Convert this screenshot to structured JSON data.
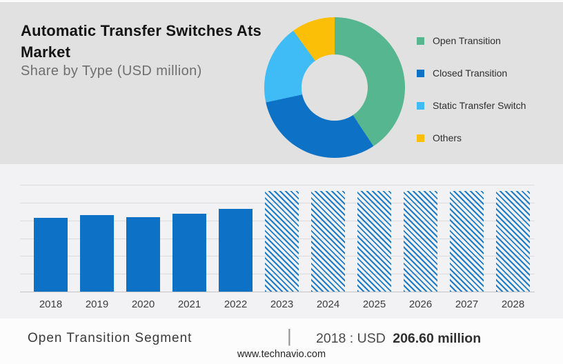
{
  "header": {
    "title": "Automatic Transfer Switches Ats Market",
    "subtitle": "Share by Type (USD million)"
  },
  "colors": {
    "header_bg": "#e1e1e2",
    "chart_bg": "#f2f2f4",
    "bar_blue": "#0d72c5",
    "hatch_blue": "#1b7bca"
  },
  "chart_data": [
    {
      "type": "pie",
      "subtype": "donut",
      "title": "Share by Type (USD million)",
      "legend_position": "right",
      "segments": [
        {
          "label": "Open Transition",
          "color": "#55b68f",
          "pct": 40.7
        },
        {
          "label": "Closed Transition",
          "color": "#0d72c5",
          "pct": 30.9
        },
        {
          "label": "Static Transfer Switch",
          "color": "#3fbbf5",
          "pct": 18.4
        },
        {
          "label": "Others",
          "color": "#fcbf08",
          "pct": 10.0
        }
      ]
    },
    {
      "type": "bar",
      "title": "",
      "xlabel": "",
      "ylabel": "",
      "categories": [
        "2018",
        "2019",
        "2020",
        "2021",
        "2022",
        "2023",
        "2024",
        "2025",
        "2026",
        "2027",
        "2028"
      ],
      "values": [
        206.6,
        215,
        209,
        219,
        232,
        283,
        283,
        283,
        283,
        283,
        283
      ],
      "hatched": [
        false,
        false,
        false,
        false,
        false,
        true,
        true,
        true,
        true,
        true,
        true
      ],
      "ylim": [
        0,
        300
      ],
      "gridline_step": 50,
      "grid": "horizontal",
      "bar_color": "#0d72c5"
    }
  ],
  "footer": {
    "segment_label": "Open Transition Segment",
    "separator": "|",
    "value_prefix": "2018 : USD",
    "value_bold": "206.60 million",
    "website": "www.technavio.com"
  }
}
